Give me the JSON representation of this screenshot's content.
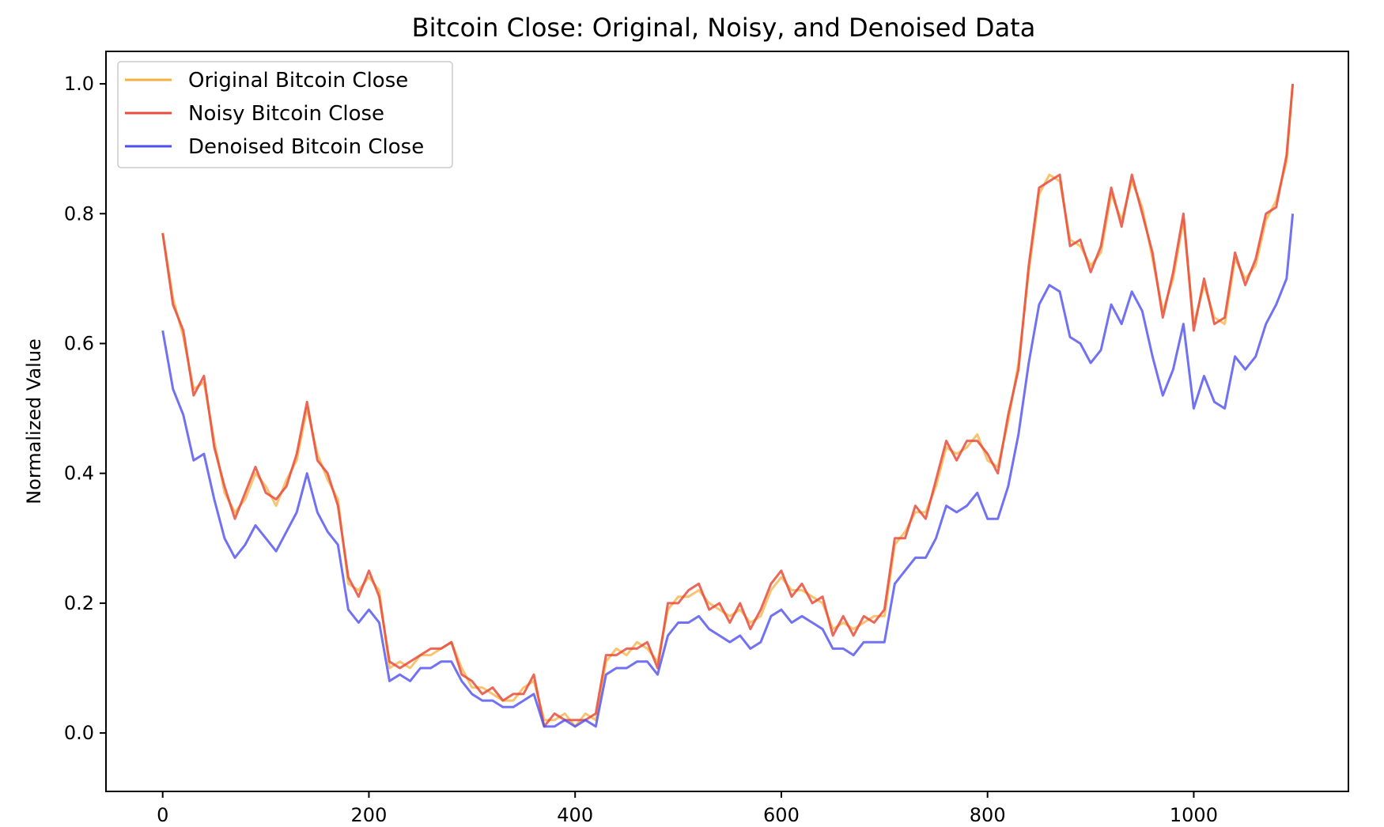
{
  "chart_data": {
    "type": "line",
    "title": "Bitcoin Close: Original, Noisy, and Denoised Data",
    "xlabel": "",
    "ylabel": "Normalized Value",
    "xlim": [
      -55,
      1150
    ],
    "ylim": [
      -0.09,
      1.05
    ],
    "xticks": [
      0,
      200,
      400,
      600,
      800,
      1000
    ],
    "yticks": [
      0.0,
      0.2,
      0.4,
      0.6,
      0.8,
      1.0
    ],
    "xtick_labels": [
      "0",
      "200",
      "400",
      "600",
      "800",
      "1000"
    ],
    "ytick_labels": [
      "0.0",
      "0.2",
      "0.4",
      "0.6",
      "0.8",
      "1.0"
    ],
    "grid": false,
    "legend_position": "top-left",
    "colors": {
      "original": "#f5b041",
      "noisy": "#e74c3c",
      "denoised": "#4d4df0"
    },
    "series": [
      {
        "name": "Original Bitcoin Close",
        "color": "#f5b041",
        "x": [
          0,
          10,
          20,
          30,
          40,
          50,
          60,
          70,
          80,
          90,
          100,
          110,
          120,
          130,
          140,
          150,
          160,
          170,
          180,
          190,
          200,
          210,
          220,
          230,
          240,
          250,
          260,
          270,
          280,
          290,
          300,
          310,
          320,
          330,
          340,
          350,
          360,
          370,
          380,
          390,
          400,
          410,
          420,
          430,
          440,
          450,
          460,
          470,
          480,
          490,
          500,
          510,
          520,
          530,
          540,
          550,
          560,
          570,
          580,
          590,
          600,
          610,
          620,
          630,
          640,
          650,
          660,
          670,
          680,
          690,
          700,
          710,
          720,
          730,
          740,
          750,
          760,
          770,
          780,
          790,
          800,
          810,
          820,
          830,
          840,
          850,
          860,
          870,
          880,
          890,
          900,
          910,
          920,
          930,
          940,
          950,
          960,
          970,
          980,
          990,
          1000,
          1010,
          1020,
          1030,
          1040,
          1050,
          1060,
          1070,
          1080,
          1090,
          1096
        ],
        "y": [
          0.77,
          0.67,
          0.61,
          0.53,
          0.54,
          0.45,
          0.37,
          0.34,
          0.36,
          0.4,
          0.38,
          0.35,
          0.39,
          0.42,
          0.5,
          0.43,
          0.39,
          0.36,
          0.23,
          0.22,
          0.24,
          0.22,
          0.1,
          0.11,
          0.1,
          0.12,
          0.12,
          0.13,
          0.14,
          0.1,
          0.07,
          0.07,
          0.06,
          0.05,
          0.05,
          0.07,
          0.08,
          0.02,
          0.02,
          0.03,
          0.01,
          0.03,
          0.02,
          0.11,
          0.13,
          0.12,
          0.14,
          0.13,
          0.11,
          0.19,
          0.21,
          0.21,
          0.22,
          0.2,
          0.19,
          0.18,
          0.19,
          0.17,
          0.18,
          0.22,
          0.24,
          0.22,
          0.22,
          0.21,
          0.2,
          0.16,
          0.17,
          0.16,
          0.17,
          0.18,
          0.18,
          0.29,
          0.31,
          0.34,
          0.34,
          0.38,
          0.44,
          0.43,
          0.44,
          0.46,
          0.42,
          0.41,
          0.48,
          0.57,
          0.71,
          0.83,
          0.86,
          0.85,
          0.76,
          0.75,
          0.72,
          0.74,
          0.83,
          0.79,
          0.85,
          0.81,
          0.73,
          0.65,
          0.7,
          0.79,
          0.63,
          0.69,
          0.64,
          0.63,
          0.73,
          0.7,
          0.72,
          0.79,
          0.82,
          0.88,
          1.0
        ]
      },
      {
        "name": "Noisy Bitcoin Close",
        "color": "#e74c3c",
        "x": [
          0,
          10,
          20,
          30,
          40,
          50,
          60,
          70,
          80,
          90,
          100,
          110,
          120,
          130,
          140,
          150,
          160,
          170,
          180,
          190,
          200,
          210,
          220,
          230,
          240,
          250,
          260,
          270,
          280,
          290,
          300,
          310,
          320,
          330,
          340,
          350,
          360,
          370,
          380,
          390,
          400,
          410,
          420,
          430,
          440,
          450,
          460,
          470,
          480,
          490,
          500,
          510,
          520,
          530,
          540,
          550,
          560,
          570,
          580,
          590,
          600,
          610,
          620,
          630,
          640,
          650,
          660,
          670,
          680,
          690,
          700,
          710,
          720,
          730,
          740,
          750,
          760,
          770,
          780,
          790,
          800,
          810,
          820,
          830,
          840,
          850,
          860,
          870,
          880,
          890,
          900,
          910,
          920,
          930,
          940,
          950,
          960,
          970,
          980,
          990,
          1000,
          1010,
          1020,
          1030,
          1040,
          1050,
          1060,
          1070,
          1080,
          1090,
          1096
        ],
        "y": [
          0.77,
          0.66,
          0.62,
          0.52,
          0.55,
          0.44,
          0.38,
          0.33,
          0.37,
          0.41,
          0.37,
          0.36,
          0.38,
          0.43,
          0.51,
          0.42,
          0.4,
          0.35,
          0.24,
          0.21,
          0.25,
          0.21,
          0.11,
          0.1,
          0.11,
          0.12,
          0.13,
          0.13,
          0.14,
          0.09,
          0.08,
          0.06,
          0.07,
          0.05,
          0.06,
          0.06,
          0.09,
          0.01,
          0.03,
          0.02,
          0.02,
          0.02,
          0.03,
          0.12,
          0.12,
          0.13,
          0.13,
          0.14,
          0.1,
          0.2,
          0.2,
          0.22,
          0.23,
          0.19,
          0.2,
          0.17,
          0.2,
          0.16,
          0.19,
          0.23,
          0.25,
          0.21,
          0.23,
          0.2,
          0.21,
          0.15,
          0.18,
          0.15,
          0.18,
          0.17,
          0.19,
          0.3,
          0.3,
          0.35,
          0.33,
          0.39,
          0.45,
          0.42,
          0.45,
          0.45,
          0.43,
          0.4,
          0.49,
          0.56,
          0.72,
          0.84,
          0.85,
          0.86,
          0.75,
          0.76,
          0.71,
          0.75,
          0.84,
          0.78,
          0.86,
          0.8,
          0.74,
          0.64,
          0.71,
          0.8,
          0.62,
          0.7,
          0.63,
          0.64,
          0.74,
          0.69,
          0.73,
          0.8,
          0.81,
          0.89,
          1.0
        ]
      },
      {
        "name": "Denoised Bitcoin Close",
        "color": "#4d4df0",
        "x": [
          0,
          10,
          20,
          30,
          40,
          50,
          60,
          70,
          80,
          90,
          100,
          110,
          120,
          130,
          140,
          150,
          160,
          170,
          180,
          190,
          200,
          210,
          220,
          230,
          240,
          250,
          260,
          270,
          280,
          290,
          300,
          310,
          320,
          330,
          340,
          350,
          360,
          370,
          380,
          390,
          400,
          410,
          420,
          430,
          440,
          450,
          460,
          470,
          480,
          490,
          500,
          510,
          520,
          530,
          540,
          550,
          560,
          570,
          580,
          590,
          600,
          610,
          620,
          630,
          640,
          650,
          660,
          670,
          680,
          690,
          700,
          710,
          720,
          730,
          740,
          750,
          760,
          770,
          780,
          790,
          800,
          810,
          820,
          830,
          840,
          850,
          860,
          870,
          880,
          890,
          900,
          910,
          920,
          930,
          940,
          950,
          960,
          970,
          980,
          990,
          1000,
          1010,
          1020,
          1030,
          1040,
          1050,
          1060,
          1070,
          1080,
          1090,
          1096
        ],
        "y": [
          0.62,
          0.53,
          0.49,
          0.42,
          0.43,
          0.36,
          0.3,
          0.27,
          0.29,
          0.32,
          0.3,
          0.28,
          0.31,
          0.34,
          0.4,
          0.34,
          0.31,
          0.29,
          0.19,
          0.17,
          0.19,
          0.17,
          0.08,
          0.09,
          0.08,
          0.1,
          0.1,
          0.11,
          0.11,
          0.08,
          0.06,
          0.05,
          0.05,
          0.04,
          0.04,
          0.05,
          0.06,
          0.01,
          0.01,
          0.02,
          0.01,
          0.02,
          0.01,
          0.09,
          0.1,
          0.1,
          0.11,
          0.11,
          0.09,
          0.15,
          0.17,
          0.17,
          0.18,
          0.16,
          0.15,
          0.14,
          0.15,
          0.13,
          0.14,
          0.18,
          0.19,
          0.17,
          0.18,
          0.17,
          0.16,
          0.13,
          0.13,
          0.12,
          0.14,
          0.14,
          0.14,
          0.23,
          0.25,
          0.27,
          0.27,
          0.3,
          0.35,
          0.34,
          0.35,
          0.37,
          0.33,
          0.33,
          0.38,
          0.46,
          0.57,
          0.66,
          0.69,
          0.68,
          0.61,
          0.6,
          0.57,
          0.59,
          0.66,
          0.63,
          0.68,
          0.65,
          0.58,
          0.52,
          0.56,
          0.63,
          0.5,
          0.55,
          0.51,
          0.5,
          0.58,
          0.56,
          0.58,
          0.63,
          0.66,
          0.7,
          0.8
        ]
      }
    ]
  }
}
